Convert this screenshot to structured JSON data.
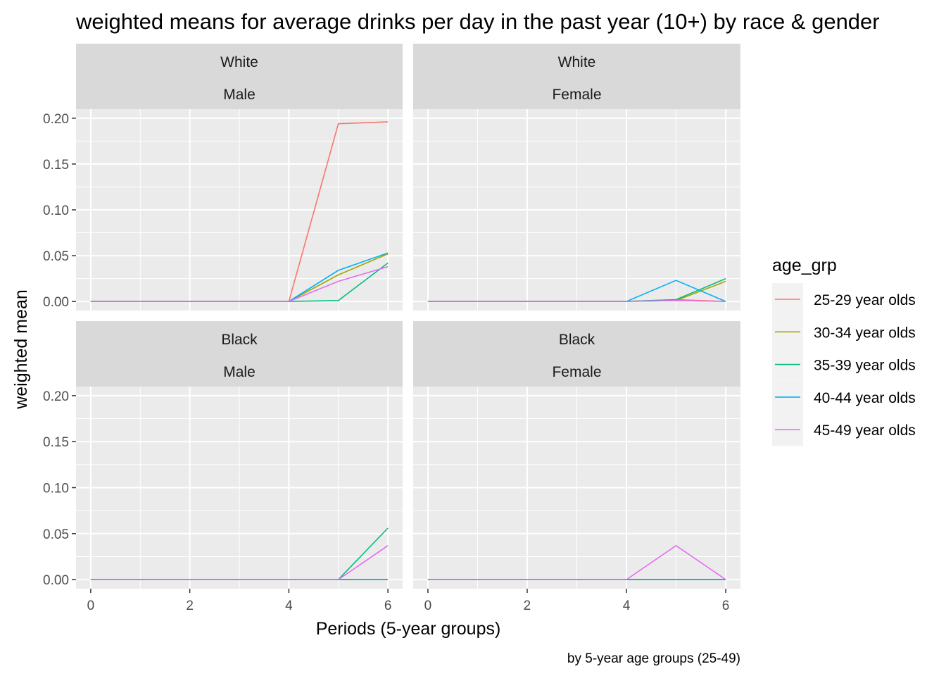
{
  "chart_data": {
    "type": "line",
    "title": "weighted means for average drinks per day in the past year (10+) by race & gender",
    "xlabel": "Periods (5-year groups)",
    "ylabel": "weighted mean",
    "caption": "by 5-year age groups (25-49)",
    "xlim": [
      0,
      6
    ],
    "ylim": [
      0,
      0.2
    ],
    "x_ticks": [
      "0",
      "2",
      "4",
      "6"
    ],
    "y_ticks": [
      "0.00",
      "0.05",
      "0.10",
      "0.15",
      "0.20"
    ],
    "legend_title": "age_grp",
    "legend_position": "right",
    "grid": true,
    "x": [
      0,
      1,
      2,
      3,
      4,
      5,
      6
    ],
    "series_meta": [
      {
        "name": "25-29 year olds",
        "color": "#F8766D"
      },
      {
        "name": "30-34 year olds",
        "color": "#A3A500"
      },
      {
        "name": "35-39 year olds",
        "color": "#00BF7D"
      },
      {
        "name": "40-44 year olds",
        "color": "#00B0F6"
      },
      {
        "name": "45-49 year olds",
        "color": "#E76BF3"
      }
    ],
    "facets": [
      {
        "race": "White",
        "gender": "Male",
        "series": [
          {
            "name": "25-29 year olds",
            "values": [
              0,
              0,
              0,
              0,
              0,
              0.194,
              0.196
            ]
          },
          {
            "name": "30-34 year olds",
            "values": [
              0,
              0,
              0,
              0,
              0,
              0.029,
              0.052
            ]
          },
          {
            "name": "35-39 year olds",
            "values": [
              0,
              0,
              0,
              0,
              0,
              0.001,
              0.042
            ]
          },
          {
            "name": "40-44 year olds",
            "values": [
              0,
              0,
              0,
              0,
              0,
              0.034,
              0.053
            ]
          },
          {
            "name": "45-49 year olds",
            "values": [
              0,
              0,
              0,
              0,
              0,
              0.022,
              0.038
            ]
          }
        ]
      },
      {
        "race": "White",
        "gender": "Female",
        "series": [
          {
            "name": "25-29 year olds",
            "values": [
              0,
              0,
              0,
              0,
              0,
              0.002,
              0
            ]
          },
          {
            "name": "30-34 year olds",
            "values": [
              0,
              0,
              0,
              0,
              0,
              0.001,
              0.022
            ]
          },
          {
            "name": "35-39 year olds",
            "values": [
              0,
              0,
              0,
              0,
              0,
              0.002,
              0.025
            ]
          },
          {
            "name": "40-44 year olds",
            "values": [
              0,
              0,
              0,
              0,
              0,
              0.023,
              0
            ]
          },
          {
            "name": "45-49 year olds",
            "values": [
              0,
              0,
              0,
              0,
              0,
              0.001,
              0
            ]
          }
        ]
      },
      {
        "race": "Black",
        "gender": "Male",
        "series": [
          {
            "name": "25-29 year olds",
            "values": [
              0,
              0,
              0,
              0,
              0,
              0,
              0
            ]
          },
          {
            "name": "30-34 year olds",
            "values": [
              0,
              0,
              0,
              0,
              0,
              0,
              0
            ]
          },
          {
            "name": "35-39 year olds",
            "values": [
              0,
              0,
              0,
              0,
              0,
              0,
              0.056
            ]
          },
          {
            "name": "40-44 year olds",
            "values": [
              0,
              0,
              0,
              0,
              0,
              0,
              0
            ]
          },
          {
            "name": "45-49 year olds",
            "values": [
              0,
              0,
              0,
              0,
              0,
              0,
              0.037
            ]
          }
        ]
      },
      {
        "race": "Black",
        "gender": "Female",
        "series": [
          {
            "name": "25-29 year olds",
            "values": [
              0,
              0,
              0,
              0,
              0,
              0,
              0
            ]
          },
          {
            "name": "30-34 year olds",
            "values": [
              0,
              0,
              0,
              0,
              0,
              0,
              0
            ]
          },
          {
            "name": "35-39 year olds",
            "values": [
              0,
              0,
              0,
              0,
              0,
              0,
              0
            ]
          },
          {
            "name": "40-44 year olds",
            "values": [
              0,
              0,
              0,
              0,
              0,
              0,
              0
            ]
          },
          {
            "name": "45-49 year olds",
            "values": [
              0,
              0,
              0,
              0,
              0,
              0.037,
              0
            ]
          }
        ]
      }
    ]
  }
}
